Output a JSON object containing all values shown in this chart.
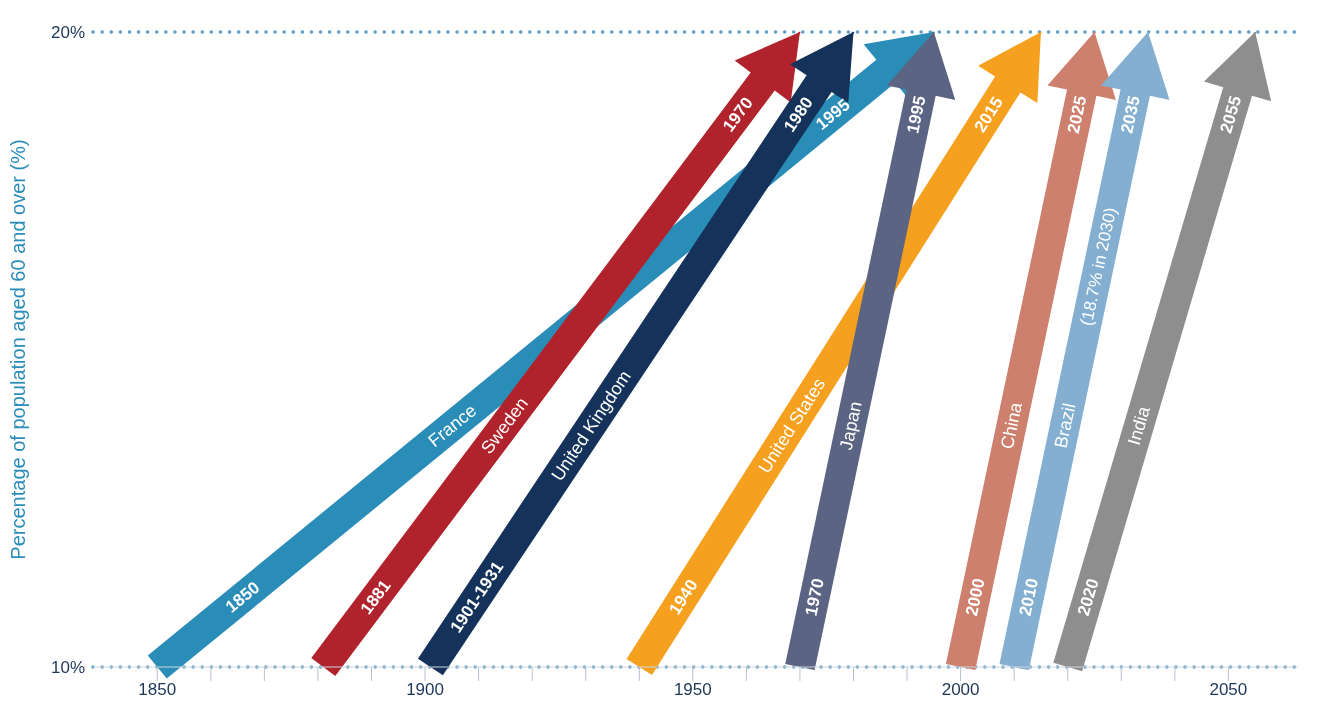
{
  "chart_data": {
    "type": "line",
    "ylabel": "Percentage of population aged 60 and over (%)",
    "xlim": [
      1838,
      2063
    ],
    "xticks": [
      1850,
      {
        "value": 1860,
        "label": null
      },
      {
        "value": 1870,
        "label": null
      },
      {
        "value": 1880,
        "label": null
      },
      {
        "value": 1890,
        "label": null
      },
      1900,
      {
        "value": 1910,
        "label": null
      },
      {
        "value": 1920,
        "label": null
      },
      {
        "value": 1930,
        "label": null
      },
      {
        "value": 1940,
        "label": null
      },
      1950,
      {
        "value": 1960,
        "label": null
      },
      {
        "value": 1970,
        "label": null
      },
      {
        "value": 1980,
        "label": null
      },
      {
        "value": 1990,
        "label": null
      },
      2000,
      {
        "value": 2010,
        "label": null
      },
      {
        "value": 2020,
        "label": null
      },
      {
        "value": 2030,
        "label": null
      },
      {
        "value": 2040,
        "label": null
      },
      2050
    ],
    "ylim": [
      10,
      20
    ],
    "yticks": [
      {
        "value": 10,
        "label": "10%"
      },
      {
        "value": 20,
        "label": "20%"
      }
    ],
    "grid": "y",
    "legend": false,
    "marker": "none",
    "line_style": "solid",
    "annotations": [
      "1850",
      "1995",
      "1881",
      "1970",
      "1901-1931",
      "1980",
      "1940",
      "2015",
      "1970",
      "1995",
      "2000",
      "2025",
      "2010",
      "2035",
      "2020",
      "2055",
      {
        "text": "(18.7% in 2030)",
        "x": 2030,
        "y": 18
      }
    ],
    "series": [
      {
        "name": "France",
        "color": "#2a8db8",
        "x": [
          1850,
          1995
        ],
        "values": [
          10,
          20
        ]
      },
      {
        "name": "Sweden",
        "color": "#b0232c",
        "x": [
          1881,
          1970
        ],
        "values": [
          10,
          20
        ]
      },
      {
        "name": "United Kingdom",
        "color": "#14325a",
        "x": [
          1901,
          1980
        ],
        "values": [
          10,
          20
        ]
      },
      {
        "name": "United States",
        "color": "#f5a01f",
        "x": [
          1940,
          2015
        ],
        "values": [
          10,
          20
        ]
      },
      {
        "name": "Japan",
        "color": "#5b6482",
        "x": [
          1970,
          1995
        ],
        "values": [
          10,
          20
        ]
      },
      {
        "name": "China",
        "color": "#cd806e",
        "x": [
          2000,
          2025
        ],
        "values": [
          10,
          20
        ]
      },
      {
        "name": "Brazil",
        "color": "#84afd0",
        "x": [
          2010,
          2035
        ],
        "values": [
          10,
          20
        ]
      },
      {
        "name": "India",
        "color": "#8e8e8e",
        "x": [
          2020,
          2055
        ],
        "values": [
          10,
          20
        ]
      }
    ]
  }
}
